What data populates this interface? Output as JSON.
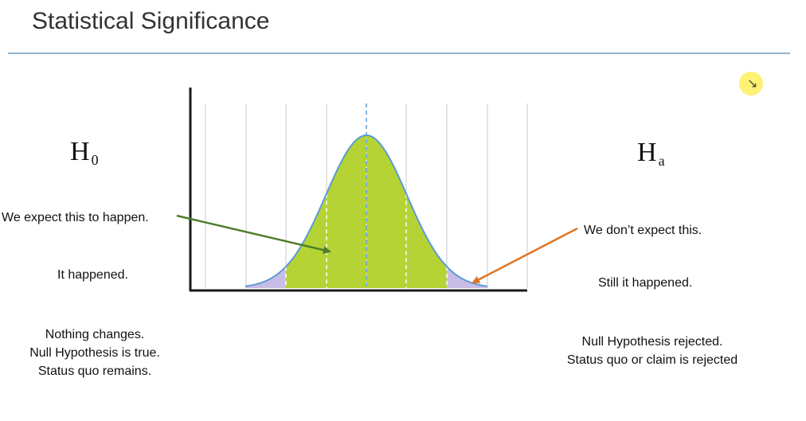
{
  "title": "Statistical Significance",
  "null_hypothesis": {
    "symbol": "H",
    "subscript": "0",
    "lines": [
      "We expect this to happen.",
      "It happened."
    ],
    "outcome": [
      "Nothing changes.",
      "Null Hypothesis is true.",
      "Status quo remains."
    ]
  },
  "alternative_hypothesis": {
    "symbol": "H",
    "subscript": "a",
    "lines": [
      "We don’t expect this.",
      "Still it happened."
    ],
    "outcome": [
      "Null Hypothesis rejected.",
      "Status quo or claim is rejected"
    ]
  },
  "colors": {
    "body_fill": "#b5d334",
    "tail_fill": "#c9bde6",
    "curve": "#5b9bd5",
    "axis": "#1a1a1a",
    "green_arrow": "#4e7d2a",
    "orange_arrow": "#e07528"
  },
  "icons": {
    "pointer": "cursor-pointer-icon"
  }
}
